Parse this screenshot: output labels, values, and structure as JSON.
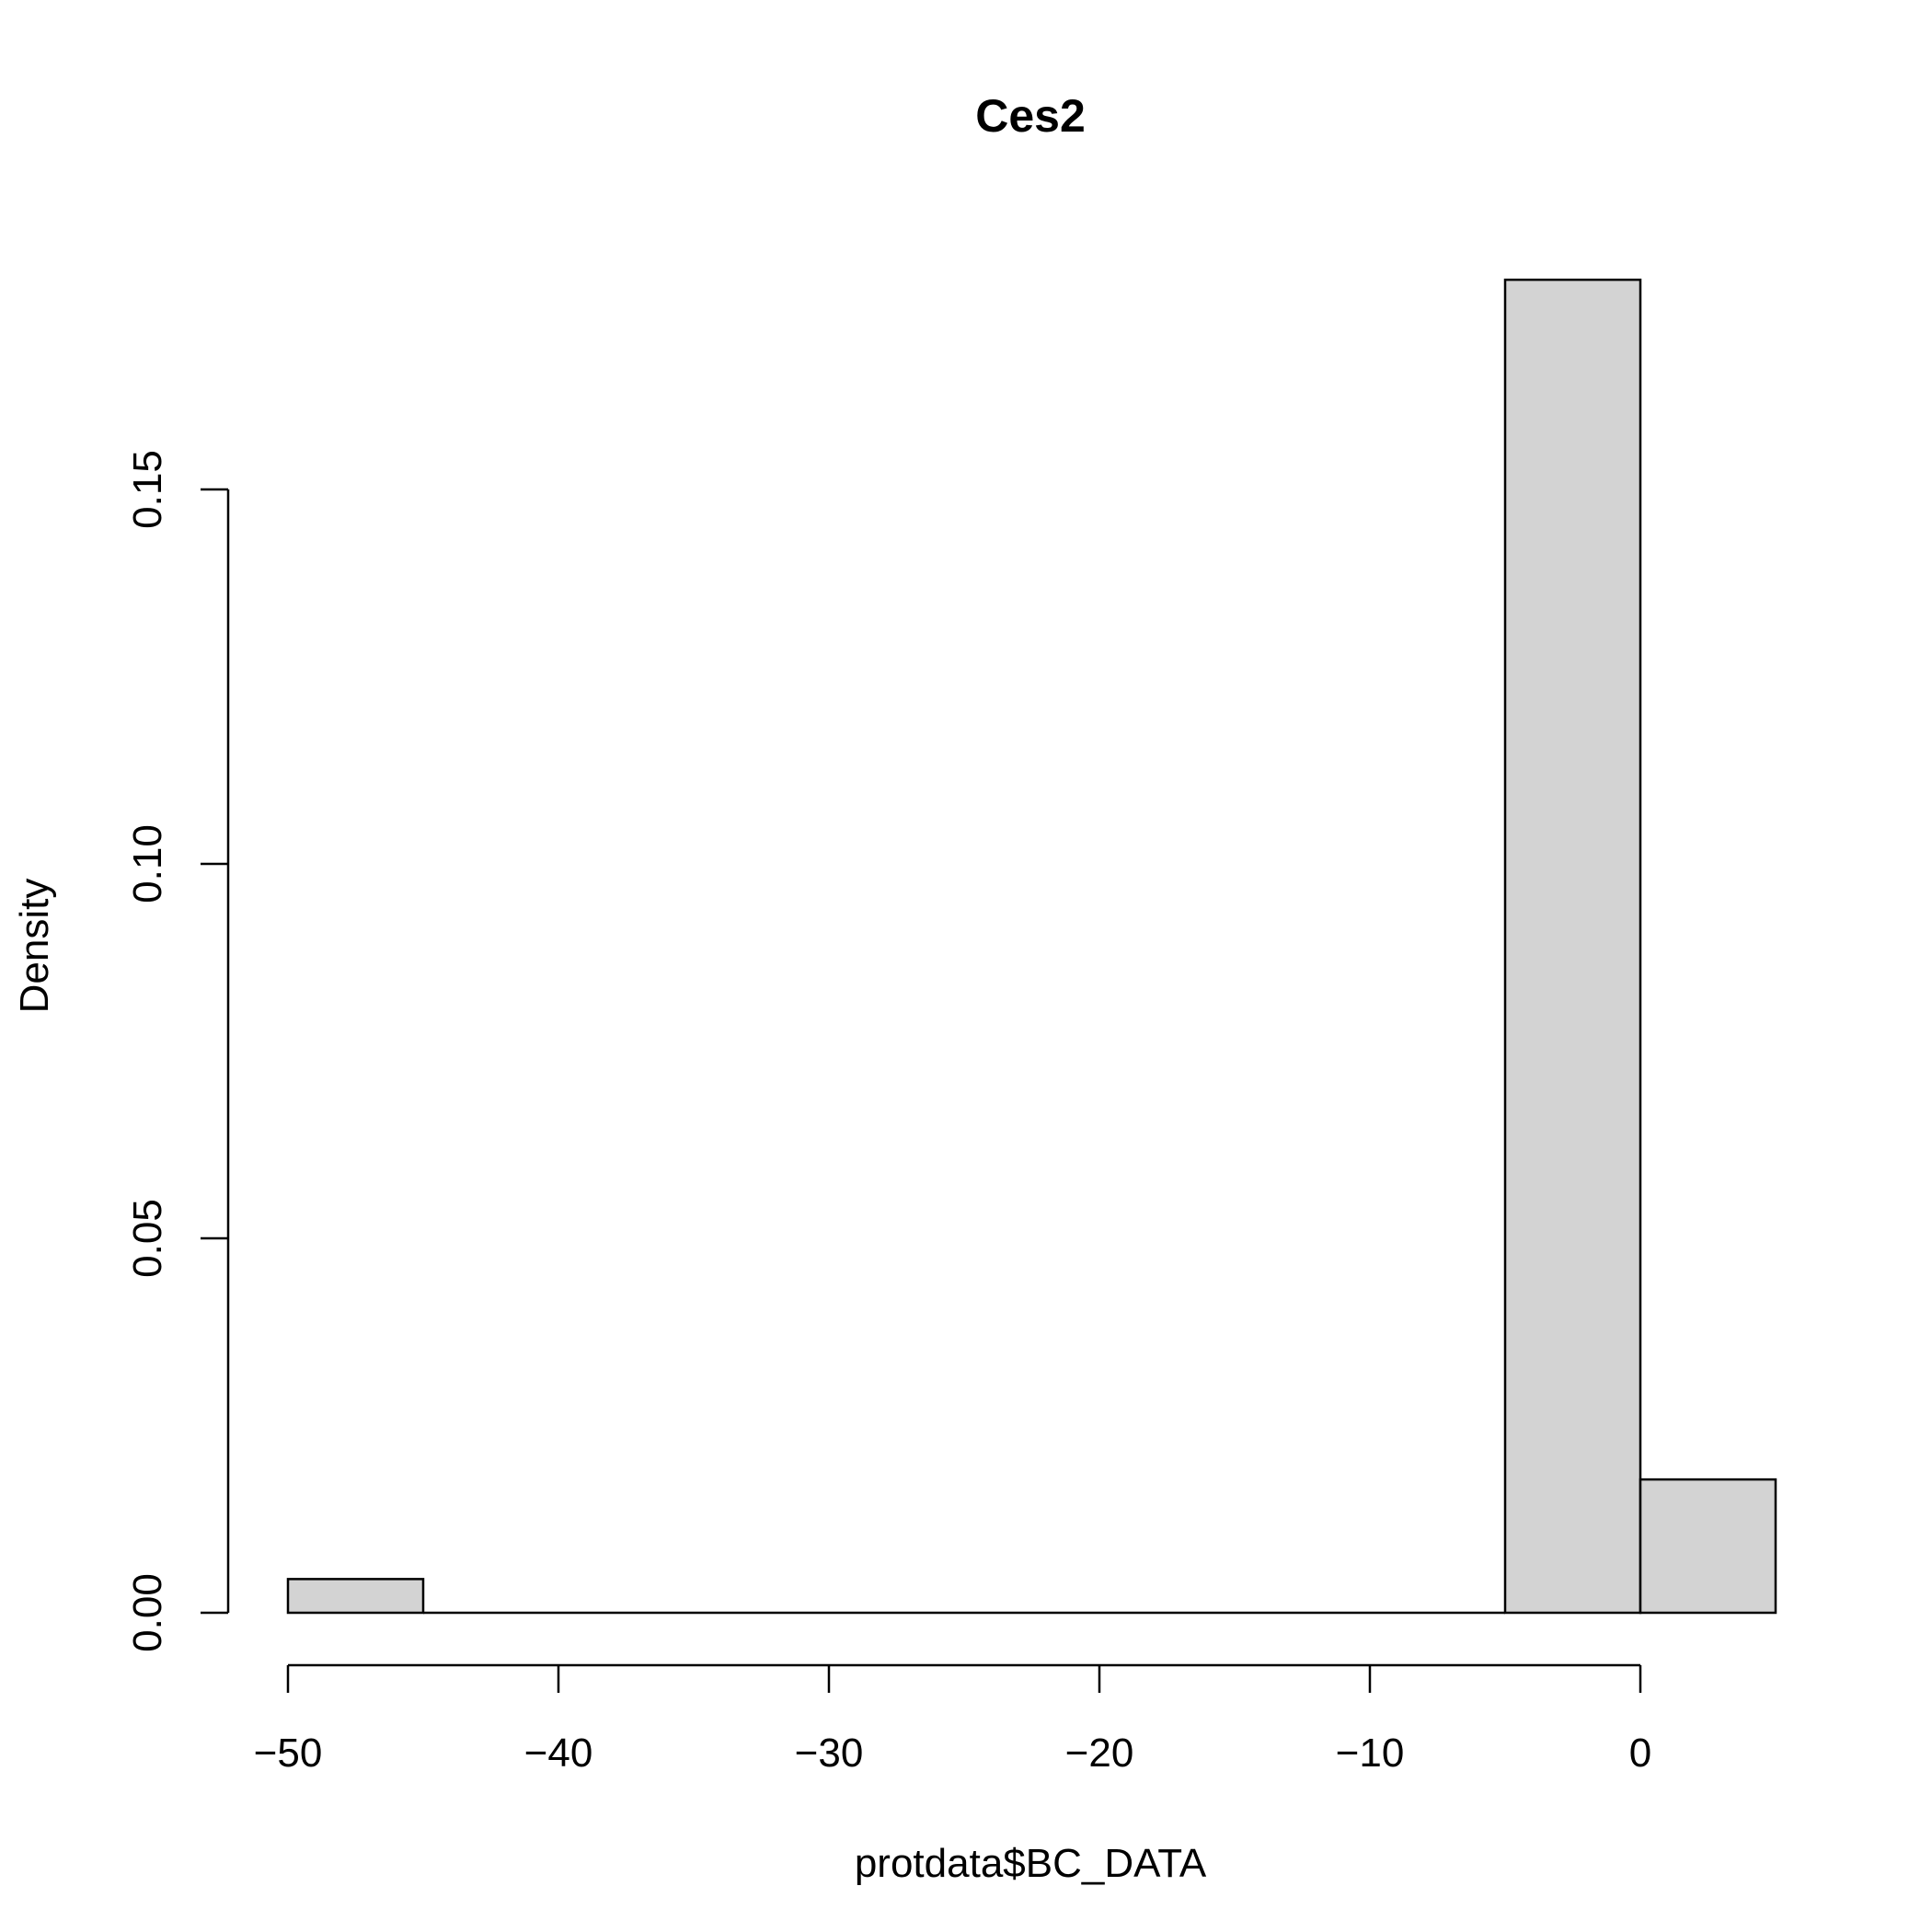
{
  "chart_data": {
    "type": "bar",
    "title": "Ces2",
    "xlabel": "protdata$BC_DATA",
    "ylabel": "Density",
    "bins": [
      {
        "x0": -50,
        "x1": -45,
        "density": 0.0045
      },
      {
        "x0": -45,
        "x1": -40,
        "density": 0
      },
      {
        "x0": -40,
        "x1": -35,
        "density": 0
      },
      {
        "x0": -35,
        "x1": -30,
        "density": 0
      },
      {
        "x0": -30,
        "x1": -25,
        "density": 0
      },
      {
        "x0": -25,
        "x1": -20,
        "density": 0
      },
      {
        "x0": -20,
        "x1": -15,
        "density": 0
      },
      {
        "x0": -15,
        "x1": -10,
        "density": 0
      },
      {
        "x0": -10,
        "x1": -5,
        "density": 0
      },
      {
        "x0": -5,
        "x1": 0,
        "density": 0.178
      },
      {
        "x0": 0,
        "x1": 5,
        "density": 0.0178
      }
    ],
    "xticks": [
      -50,
      -40,
      -30,
      -20,
      -10,
      0
    ],
    "xtick_labels": [
      "−50",
      "−40",
      "−30",
      "−20",
      "−10",
      "0"
    ],
    "yticks": [
      0,
      0.05,
      0.1,
      0.15
    ],
    "ytick_labels": [
      "0.00",
      "0.05",
      "0.10",
      "0.15"
    ],
    "xlim": [
      -50,
      5
    ],
    "ylim": [
      0,
      0.178
    ],
    "grid": false,
    "colors": {
      "bar_fill": "#d3d3d3",
      "bar_stroke": "#000000"
    }
  }
}
